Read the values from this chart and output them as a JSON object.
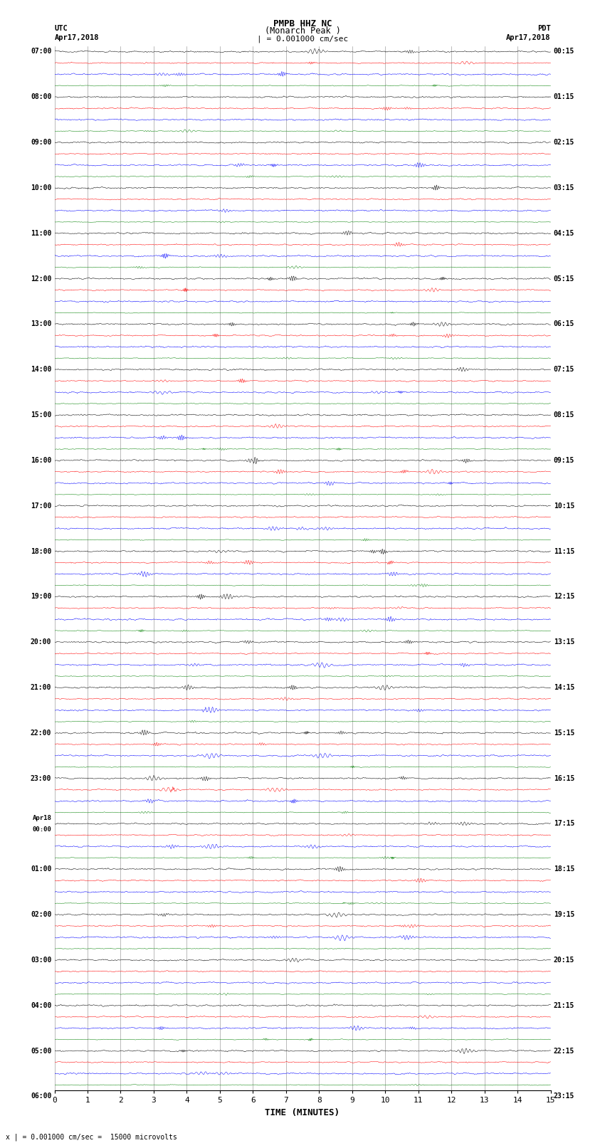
{
  "title_line1": "PMPB HHZ NC",
  "title_line2": "(Monarch Peak )",
  "scale_label": "| = 0.001000 cm/sec",
  "left_label_top": "UTC",
  "left_label_date": "Apr17,2018",
  "right_label_top": "PDT",
  "right_label_date": "Apr17,2018",
  "xlabel": "TIME (MINUTES)",
  "footer": "x | = 0.001000 cm/sec =  15000 microvolts",
  "left_times": [
    "07:00",
    "",
    "",
    "",
    "08:00",
    "",
    "",
    "",
    "09:00",
    "",
    "",
    "",
    "10:00",
    "",
    "",
    "",
    "11:00",
    "",
    "",
    "",
    "12:00",
    "",
    "",
    "",
    "13:00",
    "",
    "",
    "",
    "14:00",
    "",
    "",
    "",
    "15:00",
    "",
    "",
    "",
    "16:00",
    "",
    "",
    "",
    "17:00",
    "",
    "",
    "",
    "18:00",
    "",
    "",
    "",
    "19:00",
    "",
    "",
    "",
    "20:00",
    "",
    "",
    "",
    "21:00",
    "",
    "",
    "",
    "22:00",
    "",
    "",
    "",
    "23:00",
    "",
    "",
    "",
    "Apr18\n00:00",
    "",
    "",
    "",
    "01:00",
    "",
    "",
    "",
    "02:00",
    "",
    "",
    "",
    "03:00",
    "",
    "",
    "",
    "04:00",
    "",
    "",
    "",
    "05:00",
    "",
    "",
    "",
    "06:00",
    "",
    "",
    ""
  ],
  "right_times": [
    "00:15",
    "",
    "",
    "",
    "01:15",
    "",
    "",
    "",
    "02:15",
    "",
    "",
    "",
    "03:15",
    "",
    "",
    "",
    "04:15",
    "",
    "",
    "",
    "05:15",
    "",
    "",
    "",
    "06:15",
    "",
    "",
    "",
    "07:15",
    "",
    "",
    "",
    "08:15",
    "",
    "",
    "",
    "09:15",
    "",
    "",
    "",
    "10:15",
    "",
    "",
    "",
    "11:15",
    "",
    "",
    "",
    "12:15",
    "",
    "",
    "",
    "13:15",
    "",
    "",
    "",
    "14:15",
    "",
    "",
    "",
    "15:15",
    "",
    "",
    "",
    "16:15",
    "",
    "",
    "",
    "17:15",
    "",
    "",
    "",
    "18:15",
    "",
    "",
    "",
    "19:15",
    "",
    "",
    "",
    "20:15",
    "",
    "",
    "",
    "21:15",
    "",
    "",
    "",
    "22:15",
    "",
    "",
    "",
    "23:15",
    "",
    "",
    ""
  ],
  "n_rows": 92,
  "colors": [
    "black",
    "red",
    "blue",
    "green"
  ],
  "x_ticks": [
    0,
    1,
    2,
    3,
    4,
    5,
    6,
    7,
    8,
    9,
    10,
    11,
    12,
    13,
    14,
    15
  ],
  "x_min": 0,
  "x_max": 15,
  "background_color": "white",
  "grid_color": "#888888",
  "noise_amp_black": 0.03,
  "noise_amp_red": 0.025,
  "noise_amp_blue": 0.03,
  "noise_amp_green": 0.015,
  "seed": 42
}
